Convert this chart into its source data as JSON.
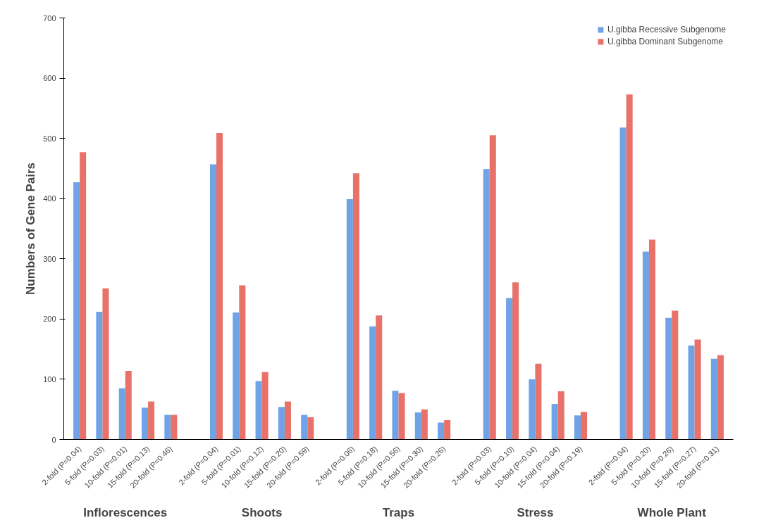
{
  "chart_data": {
    "type": "bar",
    "ylabel": "Numbers of Gene Pairs",
    "categories": [
      "2-fold (P=0.04)",
      "5-fold (P=0.03)",
      "10-fold (P=0.01)",
      "15-fold (P=0.13)",
      "20-fold (P=0.46)",
      null,
      "2-fold (P=0.04)",
      "5-fold (P=0.01)",
      "10-fold (P=0.12)",
      "15-fold (P=0.20)",
      "20-fold (P=0.59)",
      null,
      "2-fold (P=0.06)",
      "5-fold (P=0.18)",
      "10-fold (P=0.56)",
      "15-fold (P=0.30)",
      "20-fold (P=0.26)",
      null,
      "2-fold (P=0.03)",
      "5-fold (P=0.10)",
      "10-fold (P=0.04)",
      "15-fold (P=0.04)",
      "20-fold (P=0.19)",
      null,
      "2-fold (P=0.04)",
      "5-fold (P=0.20)",
      "10-fold (P=0.26)",
      "15-fold (P=0.27)",
      "20-fold (P=0.31)"
    ],
    "series": [
      {
        "name": "U.gibba Recessive Subgenome",
        "color": "#6fa3e6",
        "values": [
          427,
          212,
          85,
          53,
          41,
          null,
          457,
          211,
          97,
          54,
          41,
          null,
          399,
          188,
          81,
          45,
          28,
          null,
          449,
          235,
          100,
          59,
          40,
          null,
          518,
          312,
          202,
          156,
          134
        ]
      },
      {
        "name": "U.gibba Dominant Subgenome",
        "color": "#e8726a",
        "values": [
          477,
          251,
          114,
          63,
          41,
          null,
          509,
          256,
          112,
          63,
          37,
          null,
          442,
          206,
          77,
          50,
          32,
          null,
          505,
          261,
          126,
          80,
          46,
          null,
          573,
          332,
          214,
          166,
          140
        ]
      }
    ],
    "annotations": [
      "Inflorescences",
      "Shoots",
      "Traps",
      "Stress",
      "Whole Plant"
    ],
    "ylim": [
      0,
      700
    ],
    "yticks": [
      0,
      100,
      200,
      300,
      400,
      500,
      600,
      700
    ],
    "grid": false,
    "legend": "top right"
  }
}
